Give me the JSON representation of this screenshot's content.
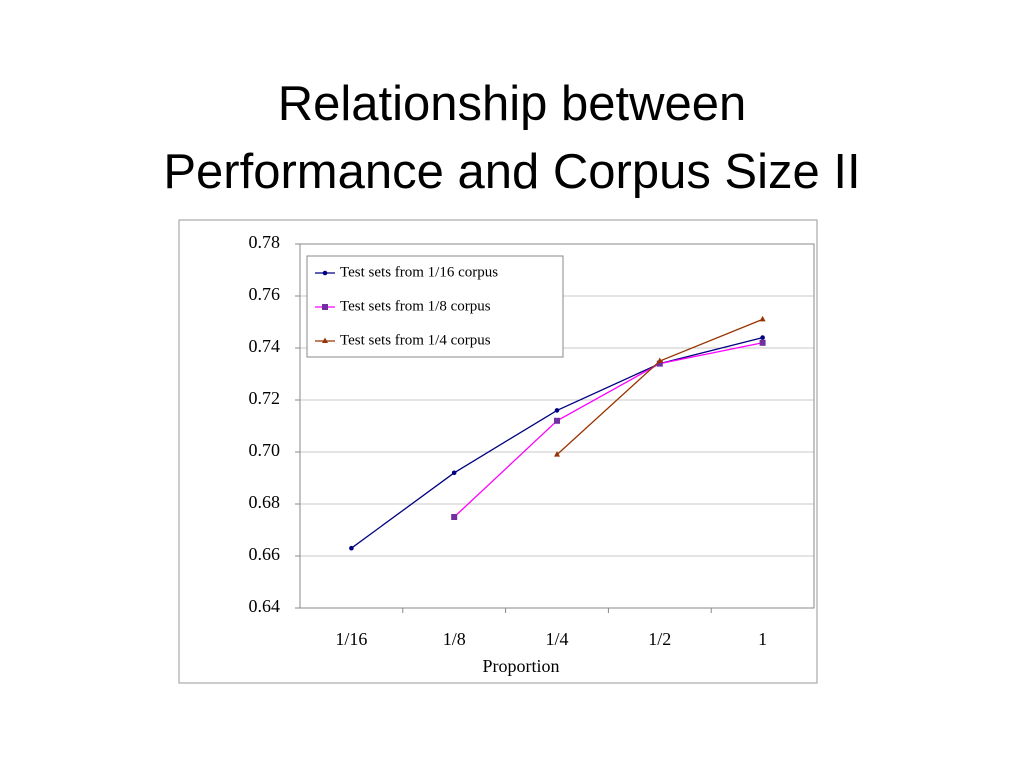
{
  "title_lines": [
    "Relationship between",
    "Performance and Corpus Size II"
  ],
  "chart_data": {
    "type": "line",
    "x_label": "Proportion",
    "categories": [
      "1/16",
      "1/8",
      "1/4",
      "1/2",
      "1"
    ],
    "series": [
      {
        "name": "Test sets from 1/16 corpus",
        "color": "#000080",
        "values": [
          0.663,
          0.692,
          0.716,
          0.734,
          0.744
        ]
      },
      {
        "name": "Test sets from 1/8 corpus",
        "color": "#ff00ff",
        "values": [
          null,
          0.675,
          0.712,
          0.734,
          0.742
        ]
      },
      {
        "name": "Test sets from 1/4 corpus",
        "color": "#993300",
        "values": [
          null,
          null,
          0.699,
          0.735,
          0.751
        ]
      }
    ],
    "ylim": [
      0.64,
      0.78
    ],
    "yticks": [
      0.64,
      0.66,
      0.68,
      {
        "value": 0.7,
        "label": "0.70"
      },
      0.72,
      0.74,
      0.76,
      0.78
    ],
    "grid": true,
    "legend": "upper-left"
  }
}
